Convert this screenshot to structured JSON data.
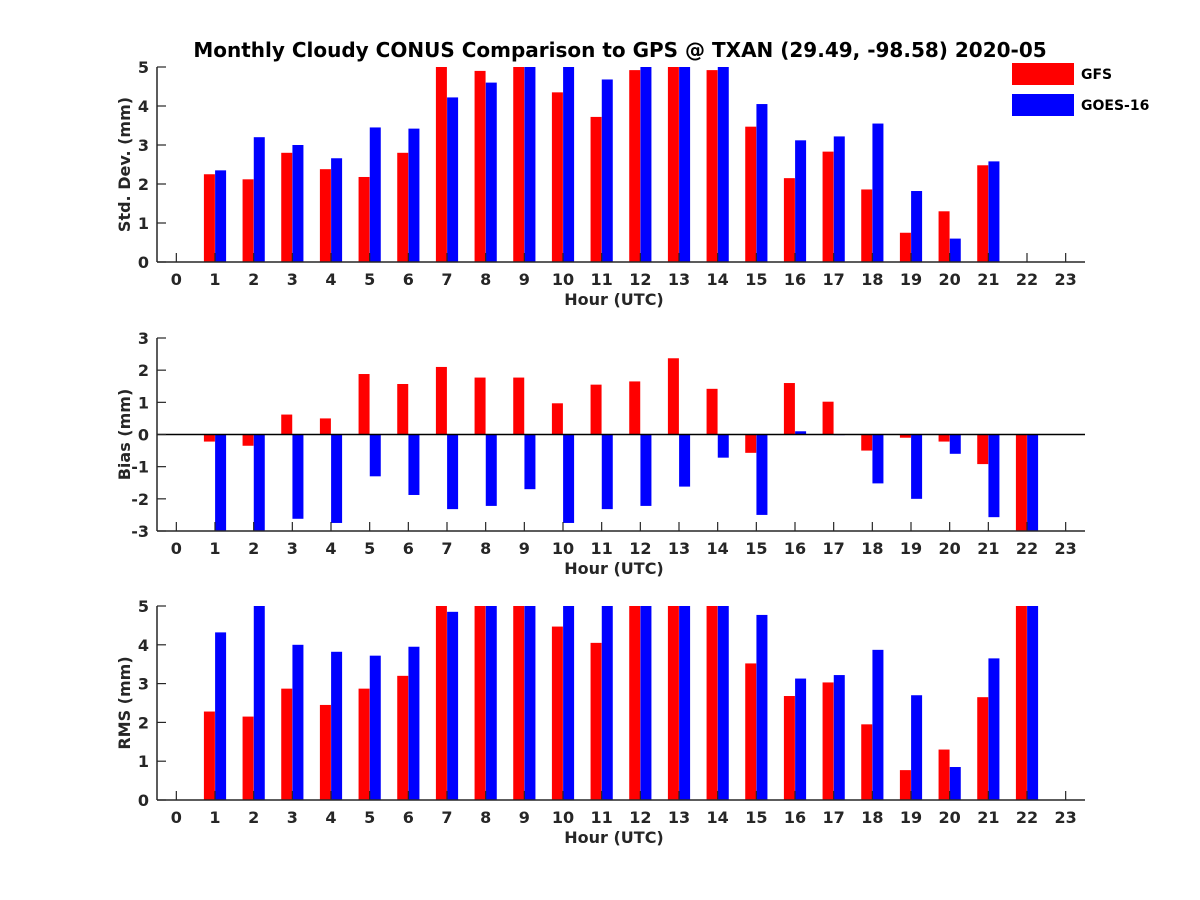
{
  "title": "Monthly Cloudy CONUS Comparison to GPS @ TXAN (29.49, -98.58) 2020-05",
  "legend": [
    {
      "name": "GFS",
      "color": "#ff0000"
    },
    {
      "name": "GOES-16",
      "color": "#0000ff"
    }
  ],
  "chart_data": [
    {
      "type": "bar",
      "xlabel": "Hour (UTC)",
      "ylabel": "Std. Dev. (mm)",
      "ylim": [
        0,
        5
      ],
      "yticks": [
        0,
        1,
        2,
        3,
        4,
        5
      ],
      "x": [
        0,
        1,
        2,
        3,
        4,
        5,
        6,
        7,
        8,
        9,
        10,
        11,
        12,
        13,
        14,
        15,
        16,
        17,
        18,
        19,
        20,
        21,
        22,
        23
      ],
      "series": [
        {
          "name": "GFS",
          "values": [
            null,
            2.25,
            2.12,
            2.8,
            2.38,
            2.18,
            2.8,
            5,
            4.9,
            5,
            4.35,
            3.72,
            4.92,
            5,
            4.92,
            3.47,
            2.15,
            2.83,
            1.86,
            0.75,
            1.3,
            2.48,
            null,
            null
          ]
        },
        {
          "name": "GOES-16",
          "values": [
            null,
            2.35,
            3.2,
            3.0,
            2.66,
            3.45,
            3.42,
            4.22,
            4.6,
            5,
            5,
            4.68,
            5,
            5,
            5,
            4.05,
            3.12,
            3.22,
            3.55,
            1.82,
            0.6,
            2.58,
            null,
            null
          ]
        }
      ]
    },
    {
      "type": "bar",
      "xlabel": "Hour (UTC)",
      "ylabel": "Bias (mm)",
      "ylim": [
        -3,
        3
      ],
      "yticks": [
        -3,
        -2,
        -1,
        0,
        1,
        2,
        3
      ],
      "x": [
        0,
        1,
        2,
        3,
        4,
        5,
        6,
        7,
        8,
        9,
        10,
        11,
        12,
        13,
        14,
        15,
        16,
        17,
        18,
        19,
        20,
        21,
        22,
        23
      ],
      "series": [
        {
          "name": "GFS",
          "values": [
            null,
            -0.22,
            -0.35,
            0.62,
            0.5,
            1.88,
            1.57,
            2.1,
            1.77,
            1.77,
            0.97,
            1.55,
            1.65,
            2.37,
            1.42,
            -0.57,
            1.6,
            1.02,
            -0.5,
            -0.1,
            -0.22,
            -0.92,
            -3,
            null
          ]
        },
        {
          "name": "GOES-16",
          "values": [
            null,
            -3,
            -3,
            -2.62,
            -2.75,
            -1.3,
            -1.88,
            -2.32,
            -2.22,
            -1.7,
            -2.75,
            -2.32,
            -2.22,
            -1.62,
            -0.72,
            -2.5,
            0.1,
            -0.02,
            -1.52,
            -2.0,
            -0.6,
            -2.57,
            -3,
            null
          ]
        }
      ]
    },
    {
      "type": "bar",
      "xlabel": "Hour (UTC)",
      "ylabel": "RMS (mm)",
      "ylim": [
        0,
        5
      ],
      "yticks": [
        0,
        1,
        2,
        3,
        4,
        5
      ],
      "x": [
        0,
        1,
        2,
        3,
        4,
        5,
        6,
        7,
        8,
        9,
        10,
        11,
        12,
        13,
        14,
        15,
        16,
        17,
        18,
        19,
        20,
        21,
        22,
        23
      ],
      "series": [
        {
          "name": "GFS",
          "values": [
            null,
            2.28,
            2.15,
            2.87,
            2.45,
            2.87,
            3.2,
            5,
            5,
            5,
            4.47,
            4.05,
            5,
            5,
            5,
            3.52,
            2.68,
            3.03,
            1.95,
            0.77,
            1.3,
            2.65,
            5,
            null
          ]
        },
        {
          "name": "GOES-16",
          "values": [
            null,
            4.32,
            5,
            4.0,
            3.82,
            3.72,
            3.95,
            4.85,
            5,
            5,
            5,
            5,
            5,
            5,
            5,
            4.77,
            3.13,
            3.22,
            3.87,
            2.7,
            0.85,
            3.65,
            5,
            null
          ]
        }
      ]
    }
  ]
}
